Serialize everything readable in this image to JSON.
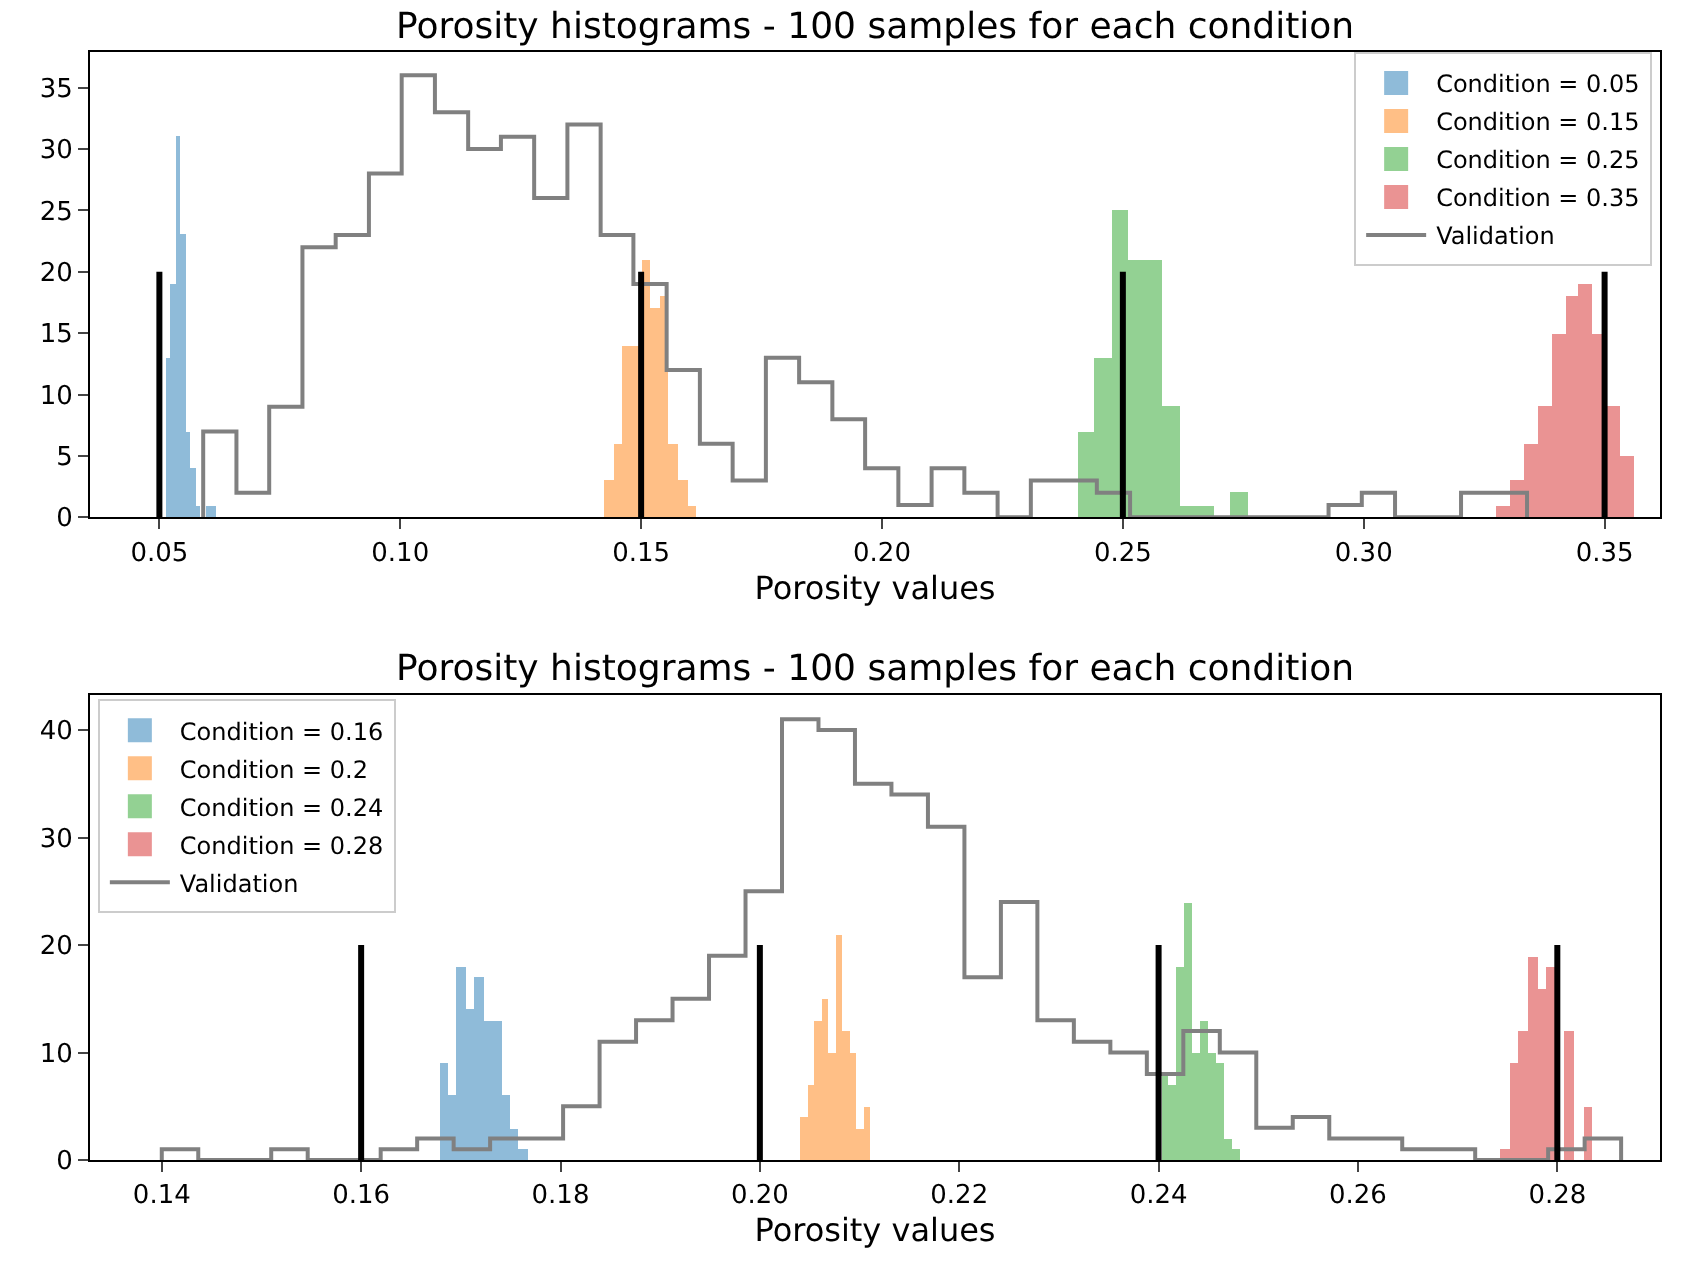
{
  "chart_data": [
    {
      "type": "histogram",
      "title": "Porosity histograms - 100 samples for each condition",
      "xlabel": "Porosity values",
      "legend": "top right",
      "xlim": [
        0.0356,
        0.3615
      ],
      "ylim": [
        0,
        37.9
      ],
      "xticks": [
        {
          "value": 0.05,
          "label": "0.05"
        },
        {
          "value": 0.1,
          "label": "0.10"
        },
        {
          "value": 0.15,
          "label": "0.15"
        },
        {
          "value": 0.2,
          "label": "0.20"
        },
        {
          "value": 0.25,
          "label": "0.25"
        },
        {
          "value": 0.3,
          "label": "0.30"
        },
        {
          "value": 0.35,
          "label": "0.35"
        }
      ],
      "yticks": [
        0,
        5,
        10,
        15,
        20,
        25,
        30,
        35
      ],
      "series": [
        {
          "name": "Condition = 0.05",
          "color": "#8fbbd9",
          "bins": [
            0.0512,
            0.0523,
            0.0533,
            0.0544,
            0.0554,
            0.0565,
            0.0576,
            0.0586,
            0.0597,
            0.0607,
            0.0618
          ],
          "values": [
            13,
            19,
            31,
            23,
            7,
            4,
            1,
            0,
            1,
            1
          ]
        },
        {
          "name": "Condition = 0.15",
          "color": "#ffbf86",
          "bins": [
            0.1423,
            0.1442,
            0.1461,
            0.1481,
            0.15,
            0.1519,
            0.1538,
            0.1557,
            0.1577,
            0.1596,
            0.1615
          ],
          "values": [
            3,
            6,
            14,
            14,
            21,
            17,
            18,
            6,
            3,
            1
          ]
        },
        {
          "name": "Condition = 0.25",
          "color": "#93d193",
          "bins": [
            0.2407,
            0.2442,
            0.2477,
            0.2512,
            0.2547,
            0.2583,
            0.2618,
            0.2653,
            0.2688,
            0.2723,
            0.2758
          ],
          "values": [
            7,
            13,
            25,
            21,
            21,
            9,
            1,
            1,
            0,
            2
          ]
        },
        {
          "name": "Condition = 0.35",
          "color": "#ea9393",
          "bins": [
            0.3273,
            0.3302,
            0.3331,
            0.336,
            0.3389,
            0.3418,
            0.3446,
            0.3475,
            0.3504,
            0.3533,
            0.3562
          ],
          "values": [
            1,
            3,
            6,
            9,
            15,
            18,
            19,
            15,
            9,
            5
          ]
        },
        {
          "name": "Validation",
          "type": "step",
          "color": "#808080",
          "x": [
            0.0591,
            0.0591,
            0.066,
            0.0728,
            0.0797,
            0.0866,
            0.0935,
            0.1003,
            0.1072,
            0.1141,
            0.1209,
            0.1278,
            0.1347,
            0.1416,
            0.1484,
            0.1553,
            0.1622,
            0.169,
            0.1759,
            0.1828,
            0.1897,
            0.1965,
            0.2034,
            0.2103,
            0.2171,
            0.224,
            0.2309,
            0.2378,
            0.2446,
            0.2515,
            0.2584,
            0.2652,
            0.2721,
            0.279,
            0.2858,
            0.2927,
            0.2996,
            0.3065,
            0.3133,
            0.3202,
            0.3271,
            0.3339
          ],
          "values": [
            0,
            7,
            2,
            9,
            22,
            23,
            28,
            36,
            33,
            30,
            31,
            26,
            32,
            23,
            19,
            12,
            6,
            3,
            13,
            11,
            8,
            4,
            1,
            4,
            2,
            0,
            3,
            3,
            2,
            0,
            0,
            0,
            0,
            0,
            0,
            1,
            2,
            0,
            0,
            2,
            2,
            0
          ]
        },
        {
          "type": "line",
          "color": "#000000",
          "x": [
            0.05,
            0.05
          ],
          "values": [
            0,
            20
          ]
        },
        {
          "type": "line",
          "color": "#000000",
          "x": [
            0.15,
            0.15
          ],
          "values": [
            0,
            20
          ]
        },
        {
          "type": "line",
          "color": "#000000",
          "x": [
            0.25,
            0.25
          ],
          "values": [
            0,
            20
          ]
        },
        {
          "type": "line",
          "color": "#000000",
          "x": [
            0.35,
            0.35
          ],
          "values": [
            0,
            20
          ]
        }
      ]
    },
    {
      "type": "histogram",
      "title": "Porosity histograms - 100 samples for each condition",
      "xlabel": "Porosity values",
      "legend": "top left",
      "xlim": [
        0.1328,
        0.2903
      ],
      "ylim": [
        0,
        43.3
      ],
      "xticks": [
        0.14,
        0.16,
        0.18,
        {
          "value": 0.2,
          "label": "0.20"
        },
        0.22,
        0.24,
        0.26,
        0.28
      ],
      "yticks": [
        0,
        10,
        20,
        30,
        40
      ],
      "series": [
        {
          "name": "Condition = 0.16",
          "color": "#8fbbd9",
          "bins": [
            0.1679,
            0.1687,
            0.1696,
            0.1705,
            0.1714,
            0.1723,
            0.1732,
            0.1741,
            0.175,
            0.1758,
            0.1767
          ],
          "values": [
            9,
            6,
            18,
            14,
            17,
            13,
            13,
            6,
            3,
            1
          ]
        },
        {
          "name": "Condition = 0.2",
          "color": "#ffbf86",
          "bins": [
            0.2041,
            0.2048,
            0.2055,
            0.2062,
            0.2069,
            0.2076,
            0.2083,
            0.209,
            0.2097,
            0.2104,
            0.2111
          ],
          "values": [
            4,
            7,
            13,
            15,
            10,
            21,
            12,
            10,
            3,
            5
          ]
        },
        {
          "name": "Condition = 0.24",
          "color": "#93d193",
          "bins": [
            0.2403,
            0.241,
            0.2418,
            0.2426,
            0.2434,
            0.2442,
            0.2449,
            0.2457,
            0.2465,
            0.2473,
            0.2481
          ],
          "values": [
            8,
            7,
            18,
            24,
            10,
            13,
            10,
            9,
            2,
            1
          ]
        },
        {
          "name": "Condition = 0.28",
          "color": "#ea9393",
          "bins": [
            0.2743,
            0.2752,
            0.2761,
            0.277,
            0.278,
            0.2789,
            0.2798,
            0.2807,
            0.2816,
            0.2826,
            0.2835
          ],
          "values": [
            1,
            9,
            12,
            19,
            16,
            18,
            0,
            12,
            0,
            5
          ]
        },
        {
          "name": "Validation",
          "type": "step",
          "color": "#808080",
          "x": [
            0.14,
            0.14,
            0.14366,
            0.14732,
            0.15098,
            0.15464,
            0.1583,
            0.16196,
            0.16562,
            0.16928,
            0.17294,
            0.1766,
            0.18026,
            0.18392,
            0.18758,
            0.19124,
            0.1949,
            0.19856,
            0.20222,
            0.20588,
            0.20954,
            0.2132,
            0.21686,
            0.22052,
            0.22418,
            0.22784,
            0.2315,
            0.23516,
            0.23882,
            0.24248,
            0.24614,
            0.2498,
            0.25346,
            0.25712,
            0.26078,
            0.26444,
            0.2681,
            0.27176,
            0.27542,
            0.27908,
            0.28274,
            0.2864
          ],
          "values": [
            0,
            1,
            0,
            0,
            1,
            0,
            0,
            1,
            2,
            1,
            2,
            2,
            5,
            11,
            13,
            15,
            19,
            25,
            41,
            40,
            35,
            34,
            31,
            17,
            24,
            13,
            11,
            10,
            8,
            12,
            10,
            3,
            4,
            2,
            2,
            1,
            1,
            0,
            0,
            1,
            2,
            0
          ]
        },
        {
          "type": "line",
          "color": "#000000",
          "x": [
            0.16,
            0.16
          ],
          "values": [
            0,
            20
          ]
        },
        {
          "type": "line",
          "color": "#000000",
          "x": [
            0.2,
            0.2
          ],
          "values": [
            0,
            20
          ]
        },
        {
          "type": "line",
          "color": "#000000",
          "x": [
            0.24,
            0.24
          ],
          "values": [
            0,
            20
          ]
        },
        {
          "type": "line",
          "color": "#000000",
          "x": [
            0.28,
            0.28
          ],
          "values": [
            0,
            20
          ]
        }
      ]
    }
  ]
}
